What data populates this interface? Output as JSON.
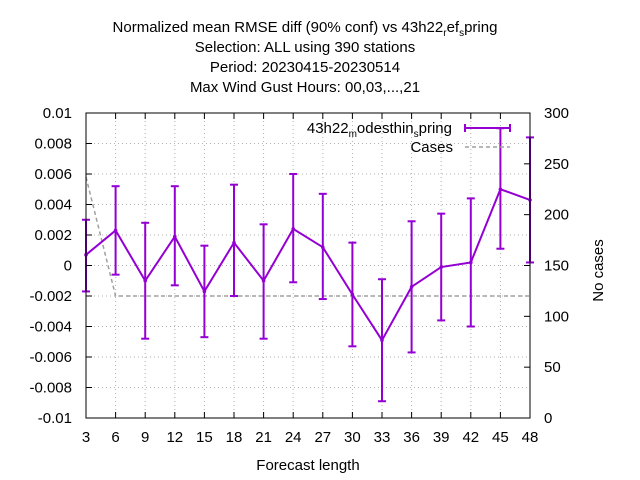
{
  "chart_data": {
    "type": "line",
    "title_lines": [
      {
        "parts": [
          "Normalized mean RMSE diff (90% conf) vs 43h22",
          "r",
          "ef",
          "s",
          "pring"
        ]
      },
      {
        "text": "Selection: ALL using   390 stations"
      },
      {
        "text": "Period: 20230415-20230514"
      },
      {
        "text": "Max Wind Gust   Hours:  00,03,...,21"
      }
    ],
    "xlabel": "Forecast length",
    "ylabel": "",
    "y2label": "No cases",
    "x": [
      3,
      6,
      9,
      12,
      15,
      18,
      21,
      24,
      27,
      30,
      33,
      36,
      39,
      42,
      45,
      48
    ],
    "xlim": [
      3,
      48
    ],
    "ylim": [
      -0.01,
      0.01
    ],
    "y2lim": [
      0,
      300
    ],
    "xticks": [
      3,
      6,
      9,
      12,
      15,
      18,
      21,
      24,
      27,
      30,
      33,
      36,
      39,
      42,
      45,
      48
    ],
    "yticks": [
      "-0.01",
      "-0.008",
      "-0.006",
      "-0.004",
      "-0.002",
      "0",
      "0.002",
      "0.004",
      "0.006",
      "0.008",
      "0.01"
    ],
    "y2ticks": [
      "0",
      "50",
      "100",
      "150",
      "200",
      "250",
      "300"
    ],
    "grid": true,
    "legend_position": "top-right",
    "series": [
      {
        "name_parts": [
          "43h22",
          "m",
          "odesthin",
          "s",
          "pring"
        ],
        "color": "#9400d3",
        "axis": "left",
        "values": [
          0.0007,
          0.0023,
          -0.001,
          0.0019,
          -0.0017,
          0.0015,
          -0.001,
          0.0024,
          0.0012,
          -0.0019,
          -0.0049,
          -0.0014,
          -0.0001,
          0.0002,
          0.005,
          0.0043
        ],
        "err_low": [
          -0.0017,
          -0.0006,
          -0.0048,
          -0.0013,
          -0.0047,
          -0.002,
          -0.0048,
          -0.0011,
          -0.0022,
          -0.0053,
          -0.0089,
          -0.0057,
          -0.0036,
          -0.004,
          0.0011,
          0.0002
        ],
        "err_high": [
          0.003,
          0.0052,
          0.0028,
          0.0052,
          0.0013,
          0.0053,
          0.0027,
          0.006,
          0.0047,
          0.0015,
          -0.0009,
          0.0029,
          0.0034,
          0.0044,
          0.009,
          0.0084
        ]
      },
      {
        "name": "Cases",
        "color": "#a0a0a0",
        "axis": "right",
        "dashed": true,
        "values": [
          237,
          120,
          120,
          120,
          120,
          120,
          120,
          120,
          120,
          120,
          120,
          120,
          120,
          120,
          120,
          120
        ]
      }
    ]
  }
}
